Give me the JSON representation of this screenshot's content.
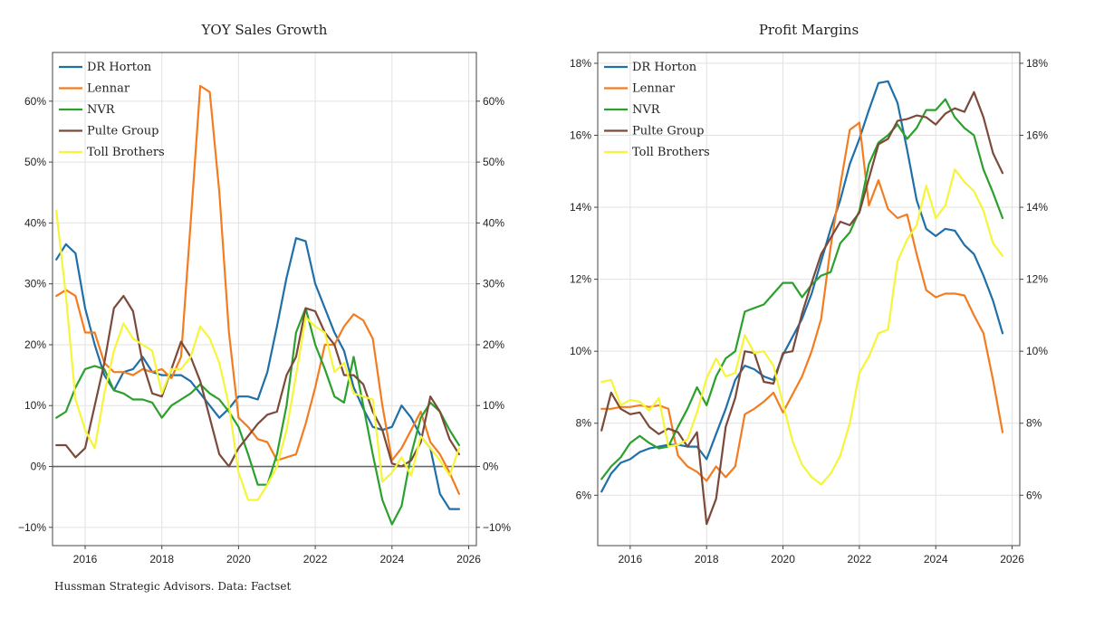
{
  "source": "Hussman Strategic Advisors. Data: Factset",
  "colors": {
    "DR Horton": "#1f6fa8",
    "Lennar": "#f47c20",
    "NVR": "#2ca02c",
    "Pulte Group": "#7b4a3a",
    "Toll Brothers": "#f5f53a"
  },
  "chart_data": [
    {
      "type": "line",
      "title": "YOY Sales Growth",
      "xlabel": "",
      "ylabel": "",
      "xlim": [
        2015.15,
        2026.2
      ],
      "ylim": [
        -13,
        68
      ],
      "xticks": [
        2016,
        2018,
        2020,
        2022,
        2024,
        2026
      ],
      "yticks": [
        -10,
        0,
        10,
        20,
        30,
        40,
        50,
        60
      ],
      "yticklabels": [
        "−10%",
        "0%",
        "10%",
        "20%",
        "30%",
        "40%",
        "50%",
        "60%"
      ],
      "grid": true,
      "zero_line": true,
      "y_axis_right_mirror": true,
      "legend": "top-left",
      "x": [
        2015.25,
        2015.5,
        2015.75,
        2016.0,
        2016.25,
        2016.5,
        2016.75,
        2017.0,
        2017.25,
        2017.5,
        2017.75,
        2018.0,
        2018.25,
        2018.5,
        2018.75,
        2019.0,
        2019.25,
        2019.5,
        2019.75,
        2020.0,
        2020.25,
        2020.5,
        2020.75,
        2021.0,
        2021.25,
        2021.5,
        2021.75,
        2022.0,
        2022.25,
        2022.5,
        2022.75,
        2023.0,
        2023.25,
        2023.5,
        2023.75,
        2024.0,
        2024.25,
        2024.5,
        2024.75,
        2025.0,
        2025.25,
        2025.5,
        2025.75
      ],
      "series": [
        {
          "name": "DR Horton",
          "values": [
            34,
            36.5,
            35,
            26,
            20,
            15,
            12.5,
            15.5,
            16,
            18,
            15.5,
            15,
            15,
            15,
            14,
            12,
            10,
            8,
            9.5,
            11.5,
            11.5,
            11,
            15.5,
            23,
            31,
            37.5,
            37,
            30,
            26,
            22,
            19,
            13,
            9.5,
            6.5,
            6,
            6.5,
            10,
            8,
            5,
            3,
            -4.5,
            -7,
            -7
          ]
        },
        {
          "name": "Lennar",
          "values": [
            28,
            29,
            28,
            22,
            22,
            17,
            15.5,
            15.5,
            15,
            16,
            15.5,
            16,
            14.5,
            18,
            40,
            62.5,
            61.5,
            45,
            22,
            8,
            6.5,
            4.5,
            4,
            1,
            1.5,
            2,
            7,
            13,
            20,
            20,
            23,
            25,
            24,
            21,
            10,
            1,
            3,
            6,
            9,
            4,
            2,
            -1,
            -4.5
          ]
        },
        {
          "name": "NVR",
          "values": [
            8,
            9,
            13,
            16,
            16.5,
            16,
            12.5,
            12,
            11,
            11,
            10.5,
            8,
            10,
            11,
            12,
            13.5,
            12,
            11,
            9,
            6.5,
            2,
            -3,
            -3,
            2,
            10,
            22,
            26,
            20,
            16,
            11.5,
            10.5,
            18,
            10,
            2,
            -5.5,
            -9.5,
            -6.5,
            2,
            8,
            10.5,
            9,
            6,
            3.5
          ]
        },
        {
          "name": "Pulte Group",
          "values": [
            3.5,
            3.5,
            1.5,
            3,
            10,
            17,
            26,
            28,
            25.5,
            17,
            12,
            11.5,
            16,
            20.5,
            18,
            14,
            8,
            2,
            0,
            3,
            5,
            7,
            8.5,
            9,
            15,
            18,
            26,
            25.5,
            22,
            20,
            15,
            15,
            13.5,
            9,
            6,
            0.5,
            0,
            1,
            4,
            11.5,
            9,
            4.5,
            2
          ]
        },
        {
          "name": "Toll Brothers",
          "values": [
            42,
            28,
            11,
            6,
            3,
            12,
            19,
            23.5,
            21,
            20,
            19,
            12,
            16,
            16,
            18,
            23,
            21,
            17,
            10,
            -1,
            -5.5,
            -5.5,
            -3,
            0,
            6,
            15,
            24.5,
            23,
            22,
            15.5,
            17,
            12,
            11.5,
            11,
            -2.5,
            -1,
            1.5,
            -1.5,
            5,
            3,
            1,
            -1.5,
            3
          ]
        }
      ]
    },
    {
      "type": "line",
      "title": "Profit Margins",
      "xlabel": "",
      "ylabel": "",
      "xlim": [
        2015.15,
        2026.2
      ],
      "ylim": [
        4.6,
        18.3
      ],
      "xticks": [
        2016,
        2018,
        2020,
        2022,
        2024,
        2026
      ],
      "yticks": [
        6,
        8,
        10,
        12,
        14,
        16,
        18
      ],
      "yticklabels": [
        "6%",
        "8%",
        "10%",
        "12%",
        "14%",
        "16%",
        "18%"
      ],
      "grid": true,
      "zero_line": false,
      "y_axis_right_mirror": true,
      "legend": "top-left",
      "x": [
        2015.25,
        2015.5,
        2015.75,
        2016.0,
        2016.25,
        2016.5,
        2016.75,
        2017.0,
        2017.25,
        2017.5,
        2017.75,
        2018.0,
        2018.25,
        2018.5,
        2018.75,
        2019.0,
        2019.25,
        2019.5,
        2019.75,
        2020.0,
        2020.25,
        2020.5,
        2020.75,
        2021.0,
        2021.25,
        2021.5,
        2021.75,
        2022.0,
        2022.25,
        2022.5,
        2022.75,
        2023.0,
        2023.25,
        2023.5,
        2023.75,
        2024.0,
        2024.25,
        2024.5,
        2024.75,
        2025.0,
        2025.25,
        2025.5,
        2025.75
      ],
      "series": [
        {
          "name": "DR Horton",
          "values": [
            6.1,
            6.6,
            6.9,
            7.0,
            7.2,
            7.3,
            7.35,
            7.4,
            7.4,
            7.35,
            7.35,
            7.0,
            7.7,
            8.4,
            9.2,
            9.6,
            9.5,
            9.3,
            9.2,
            9.9,
            10.4,
            10.9,
            11.6,
            12.5,
            13.4,
            14.2,
            15.2,
            15.9,
            16.7,
            17.45,
            17.5,
            16.9,
            15.6,
            14.2,
            13.4,
            13.2,
            13.4,
            13.35,
            12.95,
            12.7,
            12.1,
            11.4,
            10.5
          ]
        },
        {
          "name": "Lennar",
          "values": [
            8.4,
            8.4,
            8.45,
            8.45,
            8.5,
            8.45,
            8.5,
            8.4,
            7.1,
            6.8,
            6.65,
            6.4,
            6.8,
            6.5,
            6.8,
            8.25,
            8.4,
            8.6,
            8.85,
            8.3,
            8.8,
            9.3,
            10.0,
            10.9,
            12.9,
            14.6,
            16.15,
            16.35,
            14.05,
            14.75,
            13.95,
            13.7,
            13.8,
            12.7,
            11.7,
            11.5,
            11.6,
            11.6,
            11.55,
            11.0,
            10.5,
            9.2,
            7.75
          ]
        },
        {
          "name": "NVR",
          "values": [
            6.45,
            6.8,
            7.05,
            7.45,
            7.65,
            7.45,
            7.3,
            7.35,
            7.9,
            8.4,
            9.0,
            8.5,
            9.3,
            9.8,
            10.0,
            11.1,
            11.2,
            11.3,
            11.6,
            11.9,
            11.9,
            11.5,
            11.85,
            12.1,
            12.2,
            13.0,
            13.3,
            13.9,
            15.2,
            15.8,
            16.0,
            16.3,
            15.9,
            16.2,
            16.7,
            16.7,
            17.0,
            16.5,
            16.2,
            16.0,
            15.05,
            14.4,
            13.7
          ]
        },
        {
          "name": "Pulte Group",
          "values": [
            7.8,
            8.85,
            8.4,
            8.25,
            8.3,
            7.9,
            7.7,
            7.85,
            7.75,
            7.35,
            7.75,
            5.2,
            5.9,
            7.9,
            8.7,
            10.0,
            9.95,
            9.15,
            9.1,
            9.95,
            10.0,
            11.05,
            11.9,
            12.7,
            13.15,
            13.6,
            13.5,
            13.85,
            14.8,
            15.75,
            15.9,
            16.4,
            16.45,
            16.55,
            16.5,
            16.3,
            16.6,
            16.75,
            16.65,
            17.2,
            16.5,
            15.5,
            14.95
          ]
        },
        {
          "name": "Toll Brothers",
          "values": [
            9.15,
            9.2,
            8.5,
            8.65,
            8.6,
            8.35,
            8.7,
            7.35,
            7.4,
            7.55,
            8.3,
            9.25,
            9.8,
            9.3,
            9.4,
            10.45,
            9.95,
            10.0,
            9.6,
            8.55,
            7.5,
            6.85,
            6.5,
            6.3,
            6.6,
            7.1,
            8.0,
            9.4,
            9.85,
            10.5,
            10.6,
            12.5,
            13.1,
            13.5,
            14.6,
            13.7,
            14.05,
            15.05,
            14.7,
            14.45,
            13.9,
            13.0,
            12.65
          ]
        }
      ]
    }
  ]
}
